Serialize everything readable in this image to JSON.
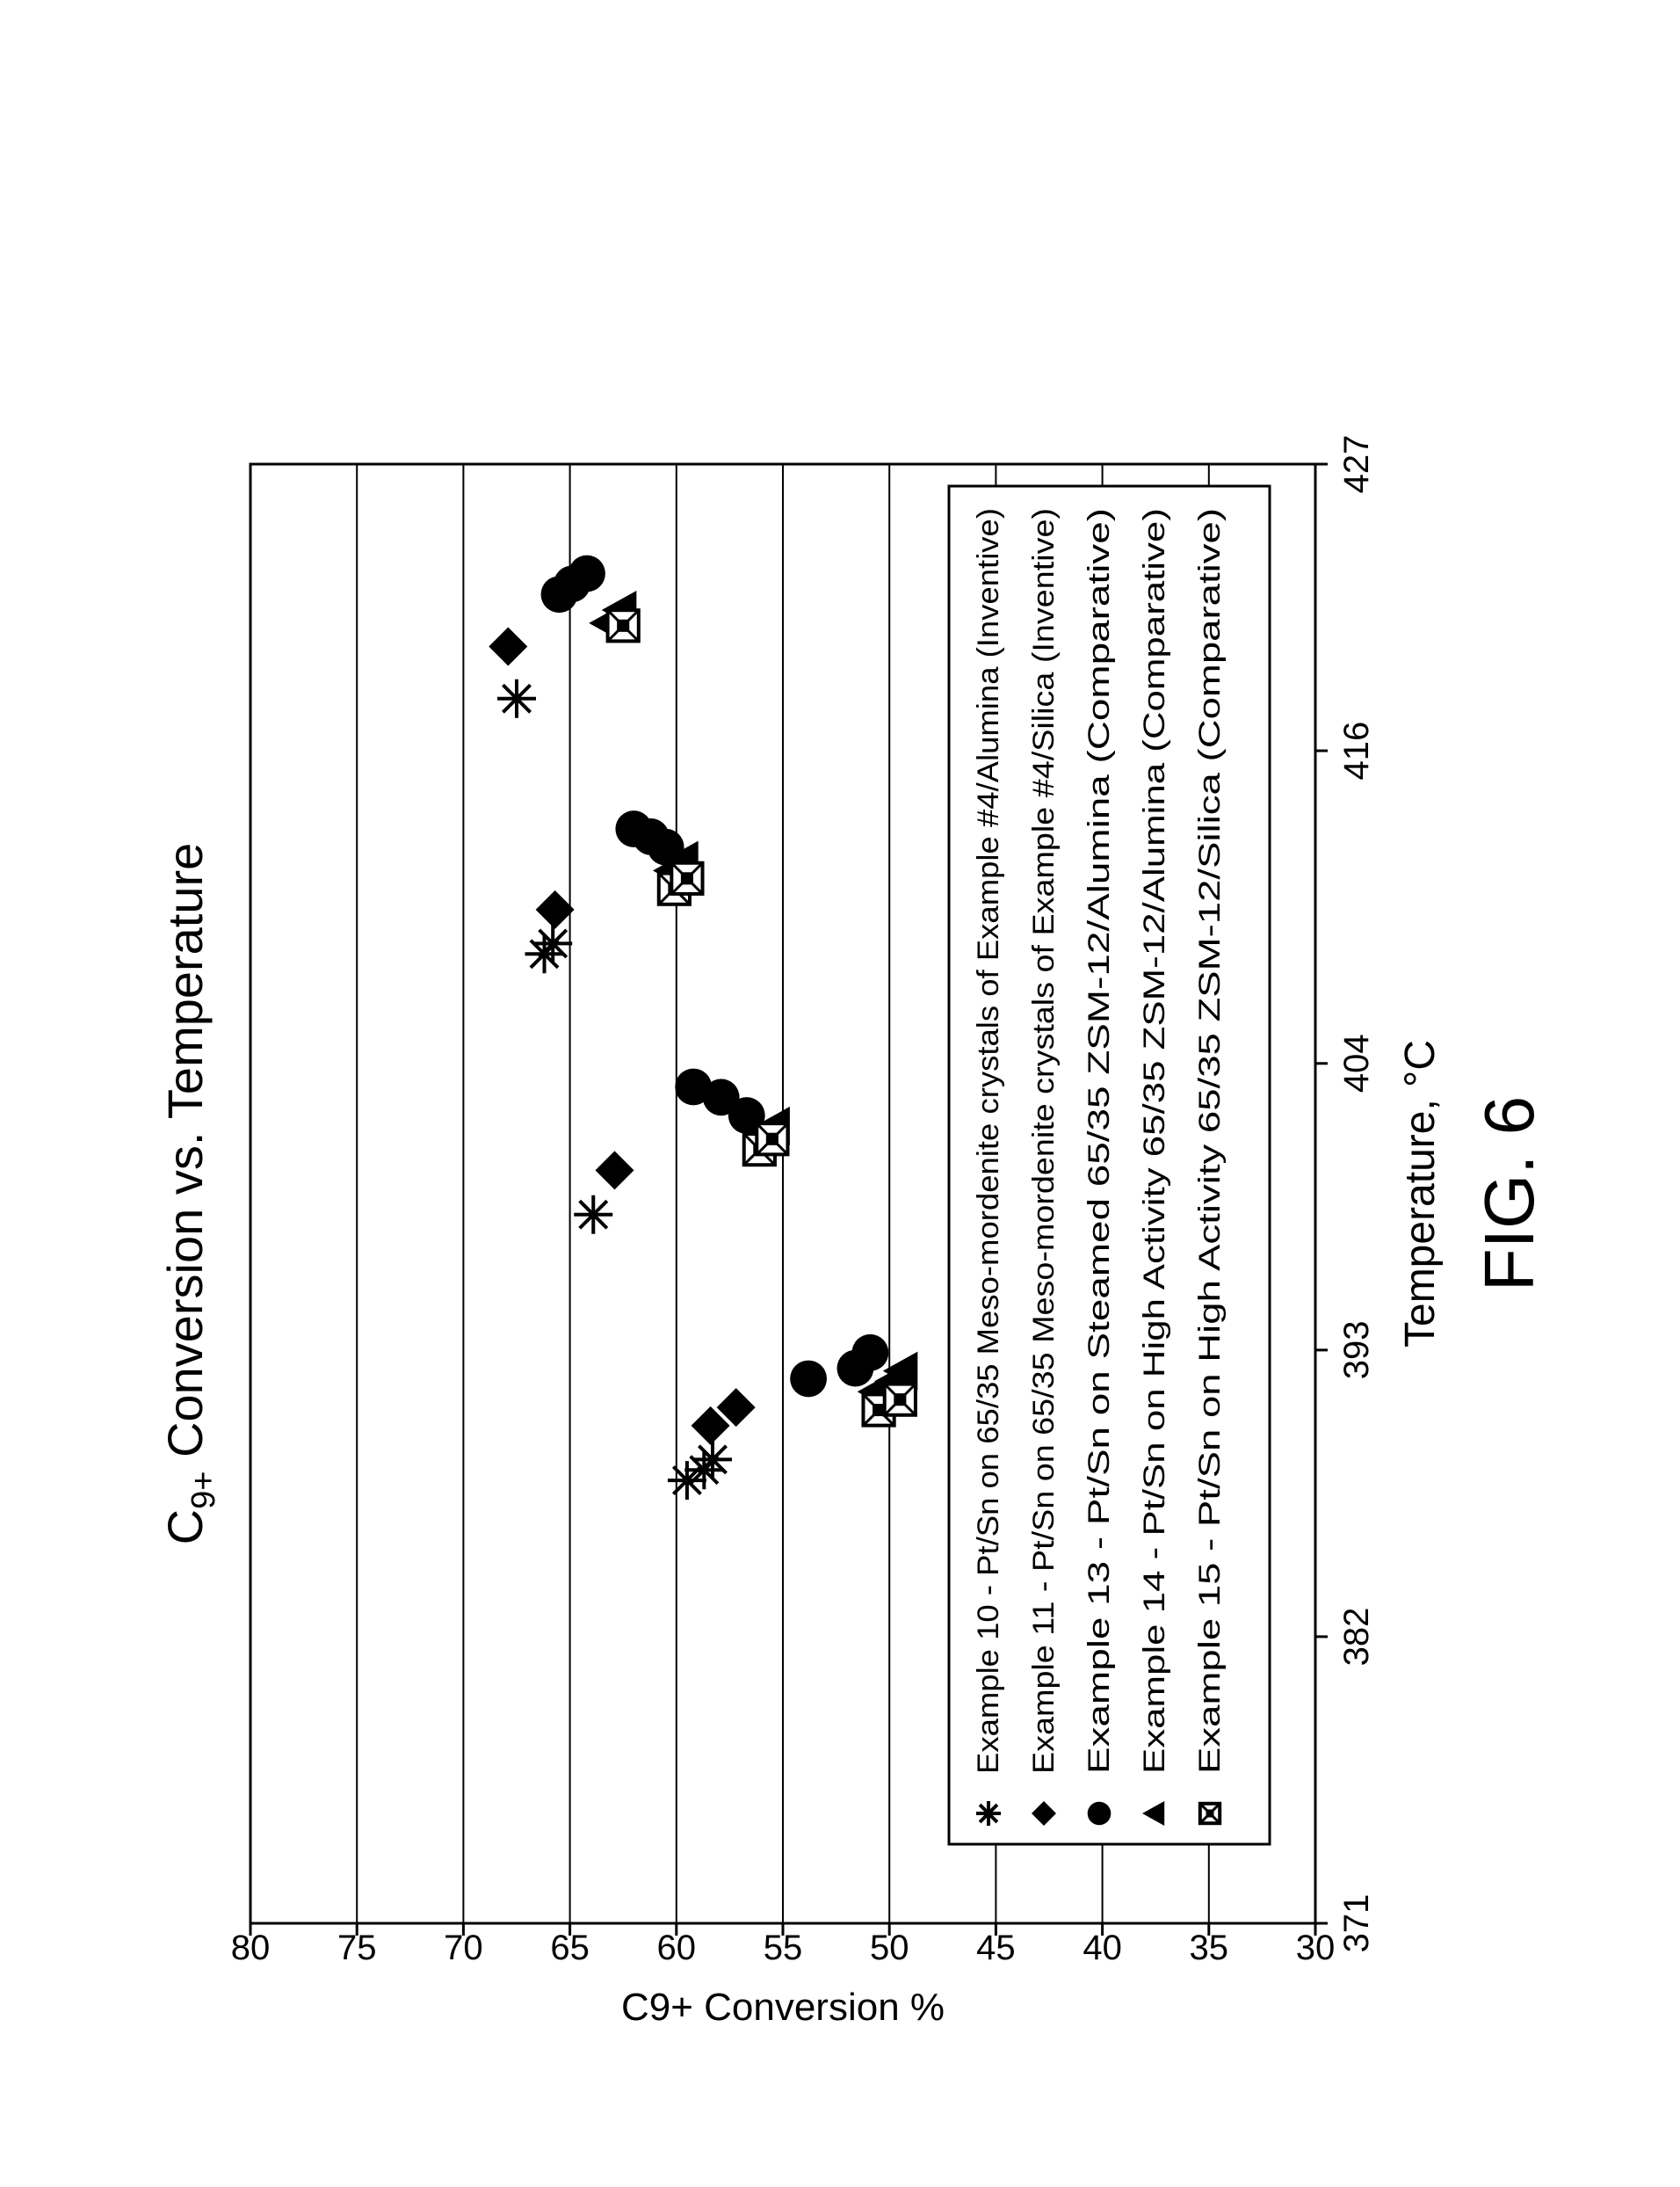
{
  "figure_label": "FIG. 6",
  "chart_data": {
    "type": "scatter",
    "title": "C9+ Conversion vs. Temperature",
    "title_parts": {
      "base": "C",
      "subscript": "9+",
      "rest": " Conversion vs. Temperature"
    },
    "xlabel": "Temperature, °C",
    "ylabel": "C9+ Conversion %",
    "xlim": [
      371,
      427
    ],
    "ylim": [
      30,
      80
    ],
    "x_ticks": [
      371,
      382,
      393,
      404,
      416,
      427
    ],
    "y_ticks": [
      30,
      35,
      40,
      45,
      50,
      55,
      60,
      65,
      70,
      75,
      80
    ],
    "grid": "horizontal",
    "legend_position": "upper-right",
    "series": [
      {
        "name": "Example 10 - Pt/Sn on 65/35 Meso-mordenite crystals of Example #4/Alumina (Inventive)",
        "marker": "asterisk",
        "points": [
          [
            388.0,
            59.5
          ],
          [
            388.4,
            58.7
          ],
          [
            388.8,
            58.3
          ],
          [
            398.2,
            63.9
          ],
          [
            408.2,
            66.2
          ],
          [
            408.6,
            65.8
          ],
          [
            418.0,
            67.5
          ]
        ]
      },
      {
        "name": "Example 11 -  Pt/Sn on 65/35 Meso-mordenite crystals of Example #4/Silica (Inventive)",
        "marker": "diamond",
        "points": [
          [
            390.1,
            58.4
          ],
          [
            390.8,
            57.2
          ],
          [
            399.9,
            62.9
          ],
          [
            409.9,
            65.7
          ],
          [
            420.0,
            67.9
          ]
        ]
      },
      {
        "name": "Example 13 - Pt/Sn on Steamed 65/35 ZSM-12/Alumina (Comparative)",
        "marker": "circle",
        "points": [
          [
            391.9,
            53.8
          ],
          [
            392.3,
            51.6
          ],
          [
            392.9,
            50.9
          ],
          [
            403.1,
            59.2
          ],
          [
            402.7,
            57.9
          ],
          [
            402.0,
            56.7
          ],
          [
            413.0,
            62.0
          ],
          [
            412.7,
            61.2
          ],
          [
            412.3,
            60.5
          ],
          [
            422.0,
            65.5
          ],
          [
            422.4,
            64.9
          ],
          [
            422.8,
            64.2
          ]
        ]
      },
      {
        "name": "Example 14 - Pt/Sn on High Activity 65/35 ZSM-12/Alumina (Comparative)",
        "marker": "triangle",
        "points": [
          [
            391.4,
            50.6
          ],
          [
            391.8,
            49.8
          ],
          [
            392.2,
            49.4
          ],
          [
            401.2,
            55.8
          ],
          [
            401.6,
            55.4
          ],
          [
            411.4,
            60.2
          ],
          [
            411.8,
            59.7
          ],
          [
            420.9,
            63.2
          ],
          [
            421.4,
            62.6
          ]
        ]
      },
      {
        "name": "Example 15 - Pt/Sn on High Activity 65/35 ZSM-12/Silica (Comparative)",
        "marker": "boxx",
        "points": [
          [
            390.7,
            50.5
          ],
          [
            391.1,
            49.5
          ],
          [
            400.7,
            56.1
          ],
          [
            401.1,
            55.5
          ],
          [
            410.7,
            60.1
          ],
          [
            411.1,
            59.5
          ],
          [
            420.8,
            62.5
          ]
        ]
      }
    ]
  }
}
